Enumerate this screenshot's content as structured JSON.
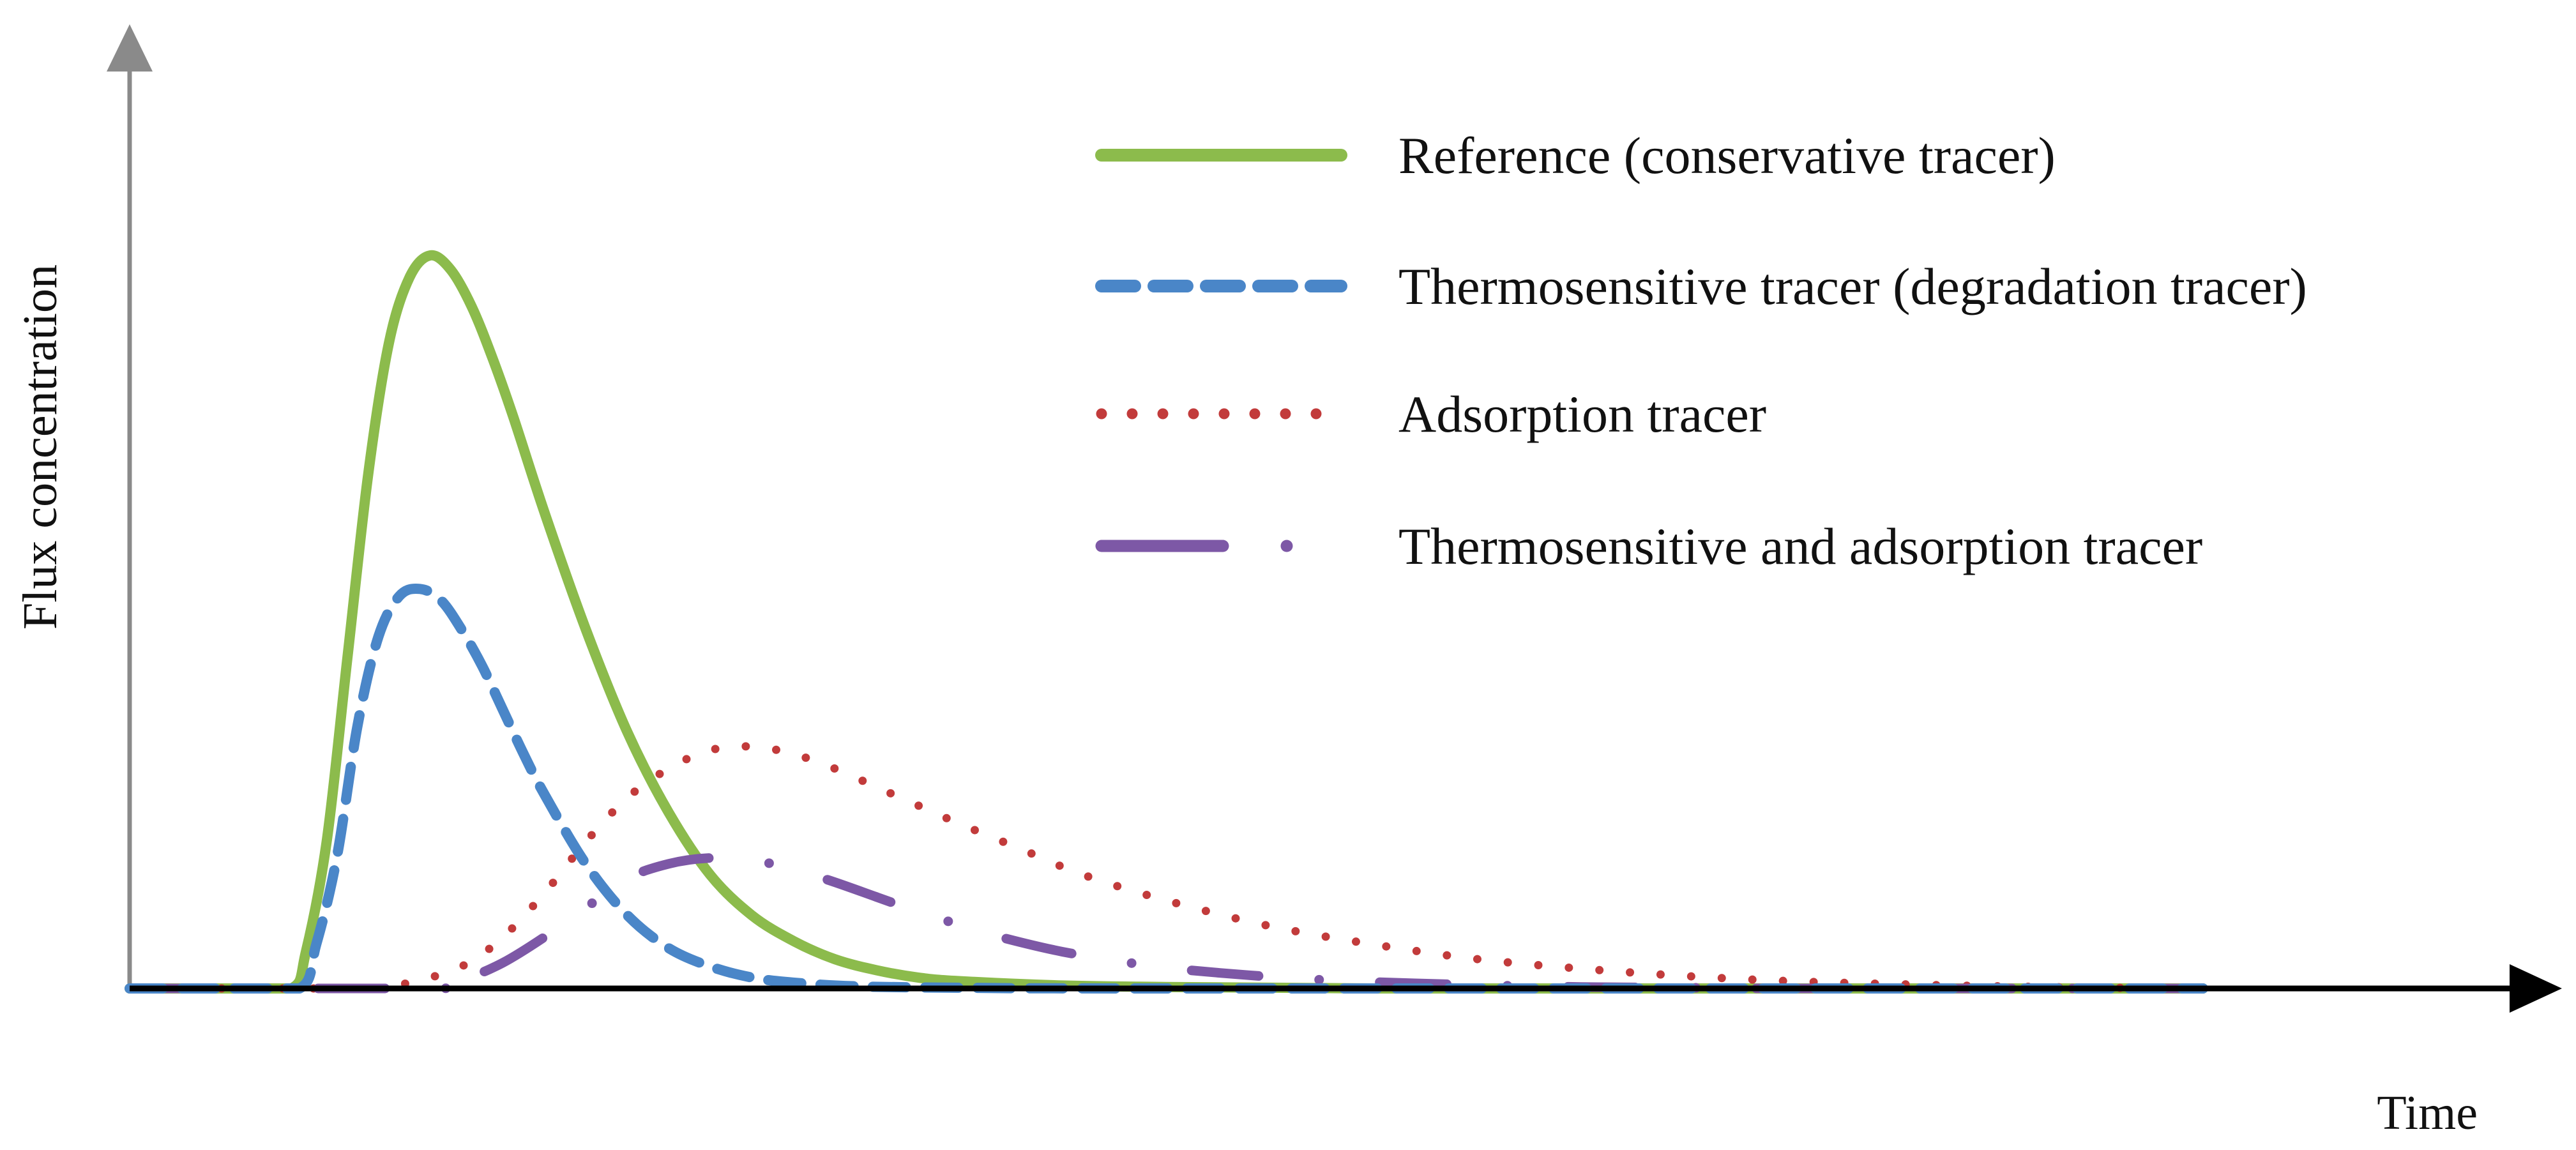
{
  "chart_data": {
    "type": "line",
    "title": "",
    "xlabel": "Time",
    "ylabel": "Flux concentration",
    "xlim": [
      0,
      10
    ],
    "ylim": [
      0,
      1
    ],
    "x_ticks_shown": false,
    "y_ticks_shown": false,
    "grid": false,
    "legend_placement": "top-right",
    "colors": {
      "reference": "#8cbb4c",
      "thermosensitive": "#4a86c8",
      "adsorption": "#c23b3b",
      "thermo_adsorption": "#7d58a6",
      "y_axis": "#8a8a8a",
      "x_axis": "#000000"
    },
    "series": [
      {
        "name": "Reference (conservative tracer)",
        "style": "solid",
        "color_key": "reference",
        "x": [
          0,
          0.5,
          0.78,
          0.85,
          0.95,
          1.05,
          1.15,
          1.25,
          1.35,
          1.45,
          1.55,
          1.65,
          1.75,
          1.85,
          2.0,
          2.2,
          2.4,
          2.6,
          2.8,
          3.0,
          3.2,
          3.4,
          3.6,
          3.8,
          4.0,
          4.5,
          5.0,
          6.0,
          8.0,
          10.0
        ],
        "y": [
          0,
          0,
          0,
          0.05,
          0.2,
          0.45,
          0.7,
          0.88,
          0.97,
          1.0,
          0.98,
          0.93,
          0.86,
          0.78,
          0.65,
          0.49,
          0.35,
          0.24,
          0.155,
          0.1,
          0.065,
          0.04,
          0.025,
          0.015,
          0.01,
          0.004,
          0.002,
          0.0,
          0.0,
          0.0
        ]
      },
      {
        "name": "Thermosensitive tracer (degradation tracer)",
        "style": "dashed",
        "color_key": "thermosensitive",
        "x": [
          0,
          0.5,
          0.82,
          0.9,
          1.0,
          1.1,
          1.2,
          1.3,
          1.4,
          1.5,
          1.6,
          1.7,
          1.8,
          1.9,
          2.0,
          2.2,
          2.4,
          2.6,
          2.8,
          3.0,
          3.2,
          3.5,
          4.0,
          5.0,
          10.0
        ],
        "y": [
          0,
          0,
          0,
          0.06,
          0.18,
          0.36,
          0.48,
          0.535,
          0.545,
          0.53,
          0.49,
          0.44,
          0.38,
          0.32,
          0.265,
          0.17,
          0.1,
          0.055,
          0.03,
          0.015,
          0.008,
          0.003,
          0.001,
          0.0,
          0.0
        ]
      },
      {
        "name": "Adsorption tracer",
        "style": "dotted",
        "color_key": "adsorption",
        "x": [
          0,
          1.0,
          1.3,
          1.6,
          1.8,
          2.0,
          2.2,
          2.4,
          2.6,
          2.8,
          3.0,
          3.2,
          3.4,
          3.6,
          3.8,
          4.0,
          4.3,
          4.6,
          5.0,
          5.5,
          6.0,
          6.5,
          7.0,
          7.5,
          8.0,
          8.5,
          9.0,
          9.5,
          10.0
        ],
        "y": [
          0,
          0,
          0.005,
          0.03,
          0.07,
          0.13,
          0.2,
          0.26,
          0.3,
          0.325,
          0.33,
          0.32,
          0.3,
          0.275,
          0.25,
          0.225,
          0.19,
          0.155,
          0.12,
          0.085,
          0.06,
          0.04,
          0.027,
          0.017,
          0.01,
          0.006,
          0.003,
          0.001,
          0.0
        ]
      },
      {
        "name": "Thermosensitive and adsorption tracer",
        "style": "dash-dot",
        "color_key": "thermo_adsorption",
        "x": [
          0,
          1.5,
          1.6,
          1.8,
          2.0,
          2.2,
          2.4,
          2.6,
          2.8,
          3.0,
          3.2,
          3.4,
          3.6,
          3.8,
          4.0,
          4.2,
          4.5,
          4.8,
          5.0,
          5.4,
          5.8,
          6.2,
          6.6,
          7.0,
          7.5,
          8.0,
          10.0
        ],
        "y": [
          0,
          0,
          0.01,
          0.035,
          0.07,
          0.11,
          0.15,
          0.17,
          0.178,
          0.175,
          0.163,
          0.145,
          0.125,
          0.105,
          0.087,
          0.07,
          0.05,
          0.036,
          0.028,
          0.018,
          0.011,
          0.007,
          0.004,
          0.002,
          0.001,
          0.0,
          0.0
        ]
      }
    ]
  }
}
